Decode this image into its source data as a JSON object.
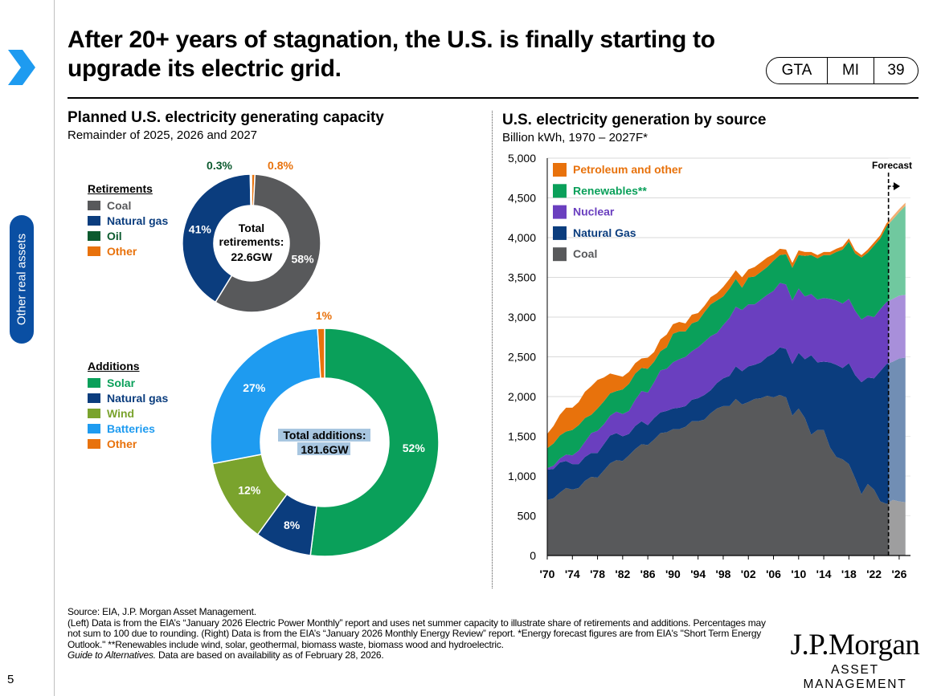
{
  "slide": {
    "title": "After 20+ years of stagnation, the U.S. is finally starting to upgrade its electric grid.",
    "tags": [
      "GTA",
      "MI",
      "39"
    ],
    "section_tab": "Other real assets",
    "page_number": "5",
    "accent": "#0a4fa3",
    "source": "Source: EIA, J.P. Morgan Asset Management.",
    "notes": "(Left) Data is from the EIA’s “January 2026 Electric Power Monthly” report and uses net summer capacity to illustrate share of retirements and additions. Percentages may not sum to 100 due to rounding. (Right) Data is from the EIA’s “January 2026 Monthly Energy Review” report. *Energy forecast figures are from EIA's \"Short Term Energy Outlook.\" **Renewables include wind, solar, geothermal, biomass waste, biomass wood and hydroelectric.",
    "guide_title": "Guide to Alternatives.",
    "guide_suffix": " Data are based on availability as of February 28, 2026.",
    "logo_name": "J.P.Morgan",
    "logo_sub": "ASSET MANAGEMENT"
  },
  "chart_data": [
    {
      "type": "pie",
      "title": "Planned U.S. electricity generating capacity",
      "subtitle": "Remainder of 2025, 2026 and 2027",
      "legend_title": "Retirements",
      "center_label": "Total retirements:",
      "center_value": "22.6GW",
      "slices": [
        {
          "name": "Coal",
          "value": 58,
          "label": "58%",
          "color": "#58595b"
        },
        {
          "name": "Natural gas",
          "value": 41,
          "label": "41%",
          "color": "#0b3d7e"
        },
        {
          "name": "Oil",
          "value": 0.3,
          "label": "0.3%",
          "color": "#0b5a2e"
        },
        {
          "name": "Other",
          "value": 0.8,
          "label": "0.8%",
          "color": "#e8720c"
        }
      ]
    },
    {
      "type": "pie",
      "legend_title": "Additions",
      "center_label": "Total additions:",
      "center_value": "181.6GW",
      "slices": [
        {
          "name": "Solar",
          "value": 52,
          "label": "52%",
          "color": "#0aa05a"
        },
        {
          "name": "Natural gas",
          "value": 8,
          "label": "8%",
          "color": "#0b3d7e"
        },
        {
          "name": "Wind",
          "value": 12,
          "label": "12%",
          "color": "#7aa32d"
        },
        {
          "name": "Batteries",
          "value": 27,
          "label": "27%",
          "color": "#1e9bf0"
        },
        {
          "name": "Other",
          "value": 1,
          "label": "1%",
          "color": "#e8720c"
        }
      ]
    },
    {
      "type": "area",
      "title": "U.S. electricity generation by source",
      "subtitle": "Billion kWh, 1970 – 2027F*",
      "forecast_label": "Forecast",
      "forecast_start": 2024.3,
      "ylim": [
        0,
        5000
      ],
      "xlim": [
        1970,
        2027.8
      ],
      "yticks": [
        0,
        500,
        1000,
        1500,
        2000,
        2500,
        3000,
        3500,
        4000,
        4500,
        5000
      ],
      "ytick_labels": [
        "0",
        "500",
        "1,000",
        "1,500",
        "2,000",
        "2,500",
        "3,000",
        "3,500",
        "4,000",
        "4,500",
        "5,000"
      ],
      "xticks": [
        1970,
        1974,
        1978,
        1982,
        1986,
        1990,
        1994,
        1998,
        2002,
        2006,
        2010,
        2014,
        2018,
        2022,
        2026
      ],
      "xtick_labels": [
        "'70",
        "'74",
        "'78",
        "'82",
        "'86",
        "'90",
        "'94",
        "'98",
        "'02",
        "'06",
        "'10",
        "'14",
        "'18",
        "'22",
        "'26"
      ],
      "x": [
        1970,
        1971,
        1972,
        1973,
        1974,
        1975,
        1976,
        1977,
        1978,
        1979,
        1980,
        1981,
        1982,
        1983,
        1984,
        1985,
        1986,
        1987,
        1988,
        1989,
        1990,
        1991,
        1992,
        1993,
        1994,
        1995,
        1996,
        1997,
        1998,
        1999,
        2000,
        2001,
        2002,
        2003,
        2004,
        2005,
        2006,
        2007,
        2008,
        2009,
        2010,
        2011,
        2012,
        2013,
        2014,
        2015,
        2016,
        2017,
        2018,
        2019,
        2020,
        2021,
        2022,
        2023,
        2024,
        2025,
        2026,
        2027
      ],
      "series": [
        {
          "name": "Coal",
          "color": "#58595b",
          "values": [
            700,
            720,
            790,
            850,
            830,
            850,
            940,
            990,
            980,
            1070,
            1160,
            1200,
            1190,
            1260,
            1340,
            1400,
            1390,
            1460,
            1540,
            1550,
            1590,
            1590,
            1620,
            1690,
            1690,
            1710,
            1790,
            1850,
            1880,
            1880,
            1970,
            1900,
            1930,
            1970,
            1980,
            2010,
            1990,
            2020,
            1990,
            1760,
            1850,
            1730,
            1520,
            1580,
            1580,
            1360,
            1240,
            1210,
            1150,
            970,
            770,
            900,
            830,
            680,
            650,
            700,
            680,
            670
          ]
        },
        {
          "name": "Natural Gas",
          "color": "#0b3d7e",
          "values": [
            380,
            370,
            380,
            340,
            320,
            300,
            300,
            300,
            310,
            330,
            350,
            340,
            310,
            270,
            290,
            290,
            250,
            270,
            260,
            270,
            260,
            270,
            260,
            270,
            290,
            310,
            290,
            320,
            350,
            380,
            410,
            420,
            450,
            430,
            450,
            490,
            550,
            600,
            610,
            650,
            700,
            740,
            1000,
            850,
            860,
            1070,
            1160,
            1150,
            1270,
            1300,
            1410,
            1340,
            1400,
            1640,
            1760,
            1740,
            1800,
            1820
          ]
        },
        {
          "name": "Nuclear",
          "color": "#6a3fbf",
          "values": [
            20,
            40,
            50,
            80,
            110,
            170,
            190,
            250,
            280,
            250,
            250,
            270,
            280,
            290,
            330,
            380,
            410,
            450,
            530,
            530,
            580,
            610,
            620,
            610,
            640,
            670,
            680,
            630,
            670,
            730,
            750,
            770,
            780,
            760,
            790,
            780,
            790,
            810,
            810,
            800,
            810,
            790,
            770,
            790,
            800,
            800,
            810,
            810,
            810,
            810,
            790,
            780,
            770,
            780,
            780,
            790,
            790,
            790
          ]
        },
        {
          "name": "Renewables**",
          "color": "#0aa05a",
          "values": [
            250,
            280,
            290,
            290,
            320,
            320,
            300,
            230,
            280,
            290,
            280,
            260,
            310,
            340,
            330,
            290,
            300,
            260,
            240,
            270,
            360,
            350,
            320,
            350,
            330,
            370,
            400,
            410,
            360,
            370,
            350,
            280,
            340,
            350,
            350,
            350,
            380,
            350,
            380,
            410,
            420,
            510,
            490,
            520,
            540,
            550,
            610,
            680,
            720,
            720,
            780,
            790,
            900,
            890,
            950,
            1000,
            1050,
            1120
          ]
        },
        {
          "name": "Petroleum and other",
          "color": "#e8720c",
          "values": [
            180,
            220,
            260,
            300,
            280,
            290,
            330,
            360,
            360,
            300,
            250,
            200,
            160,
            150,
            130,
            120,
            140,
            120,
            150,
            160,
            120,
            120,
            100,
            110,
            100,
            80,
            90,
            90,
            120,
            120,
            110,
            130,
            100,
            120,
            120,
            120,
            80,
            80,
            60,
            60,
            60,
            50,
            40,
            40,
            40,
            40,
            40,
            40,
            40,
            40,
            30,
            40,
            40,
            40,
            40,
            40,
            40,
            40
          ]
        }
      ]
    }
  ]
}
